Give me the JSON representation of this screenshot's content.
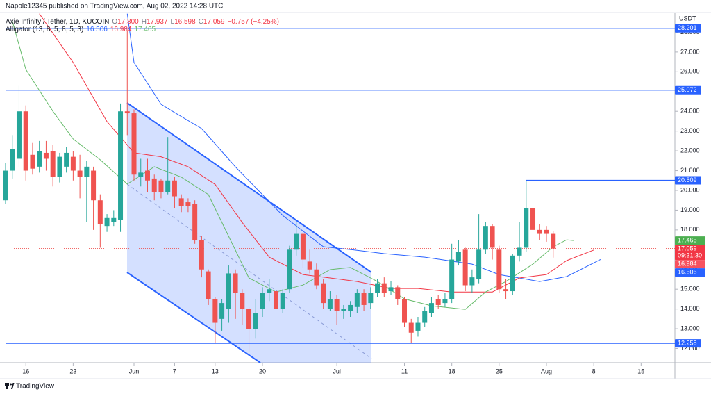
{
  "header": {
    "published": "Napole12345 published on TradingView.com, Aug 02, 2022 14:28 UTC"
  },
  "legend": {
    "symbol": "Axie Infinity / Tether, 1D, KUCOIN",
    "ohlc": [
      [
        "O",
        "17.800"
      ],
      [
        "H",
        "17.937"
      ],
      [
        "L",
        "16.598"
      ],
      [
        "C",
        "17.059"
      ]
    ],
    "change": "−0.757 (−4.25%)",
    "indicator": "Alligator (13, 8, 5, 8, 5, 3)",
    "indicator_values": [
      "16.506",
      "16.984",
      "17.465"
    ]
  },
  "footer": {
    "brand": "TradingView"
  },
  "chart_data": {
    "type": "candlestick",
    "y_unit": "USDT",
    "up_color": "#26a69a",
    "down_color": "#ef5350",
    "x": [
      "2022-05-13",
      "2022-05-14",
      "2022-05-15",
      "2022-05-16",
      "2022-05-17",
      "2022-05-18",
      "2022-05-19",
      "2022-05-20",
      "2022-05-21",
      "2022-05-22",
      "2022-05-23",
      "2022-05-24",
      "2022-05-25",
      "2022-05-26",
      "2022-05-27",
      "2022-05-28",
      "2022-05-29",
      "2022-05-30",
      "2022-05-31",
      "2022-06-01",
      "2022-06-02",
      "2022-06-03",
      "2022-06-04",
      "2022-06-05",
      "2022-06-06",
      "2022-06-07",
      "2022-06-08",
      "2022-06-09",
      "2022-06-10",
      "2022-06-11",
      "2022-06-12",
      "2022-06-13",
      "2022-06-14",
      "2022-06-15",
      "2022-06-16",
      "2022-06-17",
      "2022-06-18",
      "2022-06-19",
      "2022-06-20",
      "2022-06-21",
      "2022-06-22",
      "2022-06-23",
      "2022-06-24",
      "2022-06-25",
      "2022-06-26",
      "2022-06-27",
      "2022-06-28",
      "2022-06-29",
      "2022-06-30",
      "2022-07-01",
      "2022-07-02",
      "2022-07-03",
      "2022-07-04",
      "2022-07-05",
      "2022-07-06",
      "2022-07-07",
      "2022-07-08",
      "2022-07-09",
      "2022-07-10",
      "2022-07-11",
      "2022-07-12",
      "2022-07-13",
      "2022-07-14",
      "2022-07-15",
      "2022-07-16",
      "2022-07-17",
      "2022-07-18",
      "2022-07-19",
      "2022-07-20",
      "2022-07-21",
      "2022-07-22",
      "2022-07-23",
      "2022-07-24",
      "2022-07-25",
      "2022-07-26",
      "2022-07-27",
      "2022-07-28",
      "2022-07-29",
      "2022-07-30",
      "2022-07-31",
      "2022-08-01",
      "2022-08-02"
    ],
    "open": [
      19.5,
      21.0,
      21.6,
      24.0,
      21.8,
      21.2,
      21.9,
      22.0,
      20.7,
      21.2,
      21.7,
      21.0,
      20.7,
      21.0,
      19.5,
      18.2,
      18.4,
      18.5,
      24.0,
      23.9,
      20.7,
      21.0,
      20.6,
      20.5,
      19.9,
      20.5,
      19.6,
      19.4,
      19.3,
      17.5,
      15.9,
      14.5,
      13.5,
      14.0,
      15.8,
      14.8,
      14.0,
      13.0,
      14.0,
      14.8,
      14.9,
      14.0,
      15.0,
      17.0,
      17.8,
      16.4,
      16.0,
      15.3,
      14.0,
      14.5,
      13.9,
      13.9,
      14.1,
      14.8,
      14.3,
      14.8,
      15.3,
      14.9,
      15.1,
      14.5,
      13.3,
      12.9,
      13.3,
      13.8,
      14.5,
      14.3,
      14.5,
      16.4,
      17.0,
      15.2,
      15.5,
      17.0,
      18.2,
      17.0,
      15.0,
      14.9,
      16.7,
      17.1,
      19.1,
      18.0,
      18.0,
      17.8
    ],
    "high": [
      21.4,
      22.8,
      25.3,
      24.3,
      22.4,
      22.5,
      22.5,
      22.3,
      21.9,
      22.2,
      22.0,
      21.8,
      21.5,
      21.2,
      19.8,
      18.8,
      19.0,
      24.4,
      28.1,
      24.1,
      21.6,
      21.6,
      20.8,
      20.6,
      22.7,
      20.7,
      19.8,
      19.6,
      19.5,
      17.7,
      16.0,
      14.6,
      14.5,
      16.2,
      16.0,
      15.0,
      14.1,
      14.5,
      15.1,
      15.5,
      15.0,
      15.0,
      17.2,
      18.4,
      17.9,
      17.0,
      16.3,
      15.5,
      14.9,
      14.7,
      14.2,
      14.4,
      15.0,
      15.0,
      15.1,
      15.5,
      15.6,
      15.4,
      15.2,
      14.6,
      13.5,
      13.6,
      14.1,
      14.6,
      14.7,
      14.8,
      17.3,
      17.5,
      17.1,
      16.0,
      18.8,
      18.4,
      18.3,
      17.2,
      15.5,
      16.8,
      18.4,
      20.5,
      19.2,
      18.3,
      18.2,
      17.937
    ],
    "low": [
      19.3,
      20.6,
      21.2,
      20.5,
      20.8,
      20.9,
      21.0,
      20.2,
      20.4,
      20.9,
      20.5,
      19.6,
      18.4,
      18.0,
      17.1,
      17.9,
      18.2,
      17.9,
      22.8,
      20.5,
      20.2,
      19.9,
      19.5,
      19.6,
      19.8,
      19.1,
      18.9,
      18.9,
      17.3,
      15.6,
      14.2,
      12.3,
      12.9,
      13.3,
      13.5,
      13.2,
      11.8,
      12.5,
      13.6,
      14.4,
      13.9,
      13.8,
      14.8,
      16.7,
      16.1,
      15.8,
      15.0,
      14.0,
      13.9,
      13.2,
      13.5,
      13.6,
      13.8,
      13.9,
      14.0,
      14.6,
      14.6,
      14.7,
      14.2,
      13.1,
      12.3,
      12.6,
      13.1,
      13.6,
      14.0,
      14.1,
      14.3,
      16.2,
      14.9,
      14.8,
      15.3,
      16.8,
      16.5,
      14.8,
      14.5,
      14.7,
      16.4,
      16.9,
      17.6,
      17.5,
      17.4,
      16.598
    ],
    "close": [
      21.0,
      22.1,
      24.0,
      21.0,
      21.1,
      22.0,
      21.6,
      20.7,
      21.7,
      21.9,
      21.0,
      20.7,
      21.2,
      19.5,
      18.3,
      18.6,
      18.6,
      24.0,
      23.9,
      20.8,
      20.9,
      20.5,
      19.9,
      19.9,
      20.5,
      19.7,
      19.2,
      19.2,
      17.5,
      16.0,
      14.5,
      13.3,
      14.3,
      15.8,
      14.8,
      14.0,
      13.0,
      13.8,
      14.8,
      15.0,
      14.0,
      14.8,
      17.0,
      17.8,
      16.5,
      16.0,
      15.2,
      14.3,
      14.5,
      13.9,
      14.0,
      14.2,
      14.8,
      14.2,
      14.8,
      15.3,
      14.8,
      15.1,
      14.5,
      13.3,
      12.8,
      13.3,
      13.9,
      14.3,
      14.2,
      14.5,
      16.5,
      16.9,
      15.2,
      15.6,
      17.0,
      18.2,
      17.1,
      15.0,
      14.9,
      16.7,
      17.1,
      19.1,
      18.0,
      17.8,
      17.8,
      17.059
    ],
    "ylim": [
      11.28,
      29.0
    ],
    "yticks": [
      {
        "value": 12,
        "label": "12.000"
      },
      {
        "value": 13,
        "label": "13.000"
      },
      {
        "value": 14,
        "label": "14.000"
      },
      {
        "value": 15,
        "label": "15.000"
      },
      {
        "value": 16,
        "label": "16.000"
      },
      {
        "value": 17,
        "label": "17.000"
      },
      {
        "value": 18,
        "label": "18.000"
      },
      {
        "value": 19,
        "label": "19.000"
      },
      {
        "value": 20,
        "label": "20.000"
      },
      {
        "value": 21,
        "label": "21.000"
      },
      {
        "value": 22,
        "label": "22.000"
      },
      {
        "value": 23,
        "label": "23.000"
      },
      {
        "value": 24,
        "label": "24.000"
      },
      {
        "value": 25,
        "label": "25.000"
      },
      {
        "value": 26,
        "label": "26.000"
      },
      {
        "value": 27,
        "label": "27.000"
      },
      {
        "value": 28,
        "label": "28.000"
      }
    ],
    "xlim": [
      "2022-05-13",
      "2022-08-20"
    ],
    "xticks": [
      {
        "value": "2022-05-16",
        "label": "16"
      },
      {
        "value": "2022-05-23",
        "label": "23"
      },
      {
        "value": "2022-06-01",
        "label": "Jun"
      },
      {
        "value": "2022-06-07",
        "label": "7"
      },
      {
        "value": "2022-06-13",
        "label": "13"
      },
      {
        "value": "2022-06-20",
        "label": "20"
      },
      {
        "value": "2022-07-01",
        "label": "Jul"
      },
      {
        "value": "2022-07-11",
        "label": "11"
      },
      {
        "value": "2022-07-18",
        "label": "18"
      },
      {
        "value": "2022-07-25",
        "label": "25"
      },
      {
        "value": "2022-08-01",
        "label": "Aug"
      },
      {
        "value": "2022-08-08",
        "label": "8"
      },
      {
        "value": "2022-08-15",
        "label": "15"
      }
    ],
    "series": [
      {
        "color": "#2962ff",
        "x": [
          "2022-05-31",
          "2022-06-01",
          "2022-06-05",
          "2022-06-07",
          "2022-06-11",
          "2022-06-16",
          "2022-06-23",
          "2022-06-29",
          "2022-07-04",
          "2022-07-08",
          "2022-07-14",
          "2022-07-21",
          "2022-07-25",
          "2022-07-31",
          "2022-08-04",
          "2022-08-09"
        ],
        "values": [
          28.94,
          26.47,
          24.36,
          23.94,
          23.13,
          21.19,
          18.73,
          17.15,
          16.97,
          16.8,
          16.62,
          16.27,
          15.74,
          15.39,
          15.64,
          16.506
        ]
      },
      {
        "color": "#f23645",
        "x": [
          "2022-05-18",
          "2022-05-23",
          "2022-05-28",
          "2022-06-01",
          "2022-06-05",
          "2022-06-09",
          "2022-06-13",
          "2022-06-17",
          "2022-06-21",
          "2022-06-26",
          "2022-06-30",
          "2022-07-04",
          "2022-07-09",
          "2022-07-13",
          "2022-07-18",
          "2022-07-24",
          "2022-07-28",
          "2022-08-01",
          "2022-08-04",
          "2022-08-08"
        ],
        "values": [
          28.94,
          26.47,
          23.48,
          21.9,
          21.7,
          21.2,
          20.3,
          18.38,
          16.62,
          15.74,
          15.57,
          15.39,
          15.04,
          15.04,
          14.86,
          14.86,
          15.57,
          15.74,
          16.45,
          16.984
        ]
      },
      {
        "color": "#66bb6a",
        "x": [
          "2022-05-14",
          "2022-05-16",
          "2022-05-20",
          "2022-05-23",
          "2022-05-27",
          "2022-05-31",
          "2022-06-04",
          "2022-06-08",
          "2022-06-12",
          "2022-06-15",
          "2022-06-18",
          "2022-06-22",
          "2022-06-26",
          "2022-06-30",
          "2022-07-03",
          "2022-07-07",
          "2022-07-11",
          "2022-07-15",
          "2022-07-20",
          "2022-07-23",
          "2022-07-26",
          "2022-07-30",
          "2022-08-02",
          "2022-08-04",
          "2022-08-05"
        ],
        "values": [
          28.58,
          26.12,
          24.0,
          22.6,
          21.55,
          20.32,
          21.2,
          20.67,
          19.79,
          17.68,
          15.57,
          14.86,
          15.21,
          15.99,
          16.1,
          15.39,
          14.51,
          14.16,
          13.98,
          14.86,
          15.39,
          16.27,
          17.15,
          17.5,
          17.465
        ]
      }
    ],
    "levels": [
      {
        "value": 28.201,
        "color": "#2962ff"
      },
      {
        "value": 25.072,
        "color": "#2962ff"
      },
      {
        "value": 20.509,
        "color": "#2962ff",
        "from": "2022-07-29"
      },
      {
        "value": 12.258,
        "color": "#2962ff"
      }
    ],
    "price_labels": [
      {
        "value": 17.465,
        "color": "#4caf50"
      },
      {
        "value": 17.059,
        "color": "#f23645",
        "time": "09:31:30"
      },
      {
        "value": 16.984,
        "color": "#f7525f"
      },
      {
        "value": 16.506,
        "color": "#2962ff"
      }
    ]
  }
}
